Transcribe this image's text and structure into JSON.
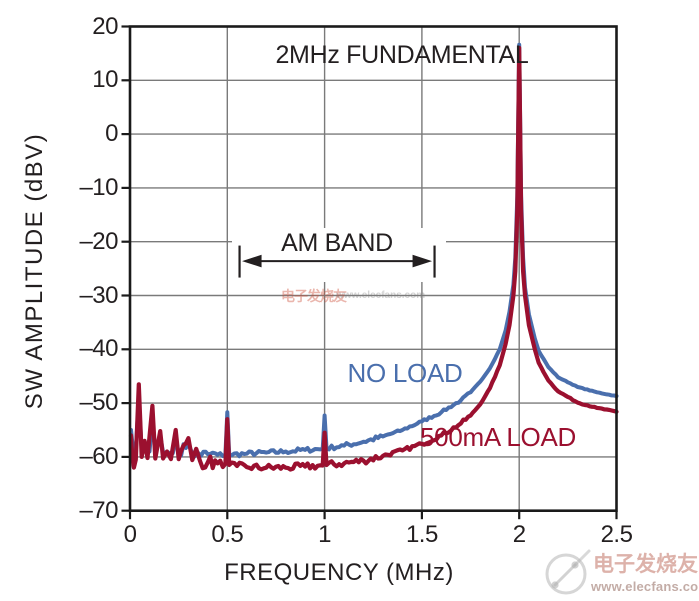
{
  "colors": {
    "no_load": "#4a6fad",
    "load_500ma": "#9b102f",
    "grid": "#7a7a7a",
    "frame": "#1a1a1a",
    "text": "#231f20",
    "watermark_red": "rgba(200,130,118,0.62)"
  },
  "axes": {
    "y": {
      "title": "SW AMPLITUDE (dBV)",
      "tick_labels": [
        "20",
        "10",
        "0",
        "–10",
        "–20",
        "–30",
        "–40",
        "–50",
        "–60",
        "–70"
      ],
      "tick_values": [
        20,
        10,
        0,
        -10,
        -20,
        -30,
        -40,
        -50,
        -60,
        -70
      ]
    },
    "x": {
      "title": "FREQUENCY (MHz)",
      "tick_labels": [
        "0",
        "0.5",
        "1",
        "1.5",
        "2",
        "2.5"
      ],
      "tick_values": [
        0,
        0.5,
        1,
        1.5,
        2,
        2.5
      ]
    }
  },
  "annotations": {
    "peak_label": "2MHz FUNDAMENTAL",
    "am_band": {
      "label": "AM BAND",
      "start_mhz": 0.563,
      "end_mhz": 1.565,
      "level_dbv": -23.6
    }
  },
  "watermark": {
    "cn": "电子发烧友",
    "url": "www.elecfans.com"
  },
  "chart_data": {
    "type": "line",
    "title": "2MHz FUNDAMENTAL",
    "xlabel": "FREQUENCY (MHz)",
    "ylabel": "SW AMPLITUDE (dBV)",
    "xlim": [
      0,
      2.5
    ],
    "ylim": [
      -70,
      20
    ],
    "grid": true,
    "series": [
      {
        "name": "NO LOAD",
        "color": "#4a6fad",
        "noise_db": 0.8,
        "points": [
          [
            0.005,
            -55
          ],
          [
            0.015,
            -58.5
          ],
          [
            0.03,
            -58.8
          ],
          [
            0.045,
            -49
          ],
          [
            0.06,
            -58.8
          ],
          [
            0.075,
            -59
          ],
          [
            0.1,
            -59
          ],
          [
            0.115,
            -53
          ],
          [
            0.13,
            -59
          ],
          [
            0.155,
            -56
          ],
          [
            0.17,
            -59.2
          ],
          [
            0.19,
            -59.2
          ],
          [
            0.22,
            -59.3
          ],
          [
            0.235,
            -56.5
          ],
          [
            0.25,
            -59.3
          ],
          [
            0.3,
            -57.5
          ],
          [
            0.32,
            -59.4
          ],
          [
            0.4,
            -59.5
          ],
          [
            0.45,
            -59.6
          ],
          [
            0.49,
            -59.6
          ],
          [
            0.5,
            -51.7
          ],
          [
            0.51,
            -59.6
          ],
          [
            0.6,
            -59.4
          ],
          [
            0.7,
            -59.2
          ],
          [
            0.8,
            -59
          ],
          [
            0.9,
            -58.7
          ],
          [
            0.99,
            -58.5
          ],
          [
            1.0,
            -52.3
          ],
          [
            1.01,
            -58.4
          ],
          [
            1.1,
            -57.9
          ],
          [
            1.2,
            -57.2
          ],
          [
            1.3,
            -56.2
          ],
          [
            1.4,
            -55
          ],
          [
            1.5,
            -53.4
          ],
          [
            1.6,
            -51.7
          ],
          [
            1.7,
            -49.5
          ],
          [
            1.75,
            -48
          ],
          [
            1.8,
            -46
          ],
          [
            1.85,
            -43.5
          ],
          [
            1.9,
            -40
          ],
          [
            1.93,
            -36.5
          ],
          [
            1.95,
            -33
          ],
          [
            1.97,
            -28
          ],
          [
            1.98,
            -23
          ],
          [
            1.99,
            -11.5
          ],
          [
            2.0,
            16.6
          ],
          [
            2.01,
            -11.5
          ],
          [
            2.02,
            -23
          ],
          [
            2.03,
            -28.5
          ],
          [
            2.05,
            -33.5
          ],
          [
            2.08,
            -38
          ],
          [
            2.1,
            -40.3
          ],
          [
            2.15,
            -43.3
          ],
          [
            2.2,
            -45.2
          ],
          [
            2.3,
            -47
          ],
          [
            2.4,
            -48
          ],
          [
            2.5,
            -48.7
          ]
        ]
      },
      {
        "name": "500mA LOAD",
        "color": "#9b102f",
        "noise_db": 1.2,
        "points": [
          [
            0.005,
            -56
          ],
          [
            0.012,
            -60
          ],
          [
            0.02,
            -62
          ],
          [
            0.03,
            -60.5
          ],
          [
            0.045,
            -46.5
          ],
          [
            0.06,
            -60
          ],
          [
            0.075,
            -57
          ],
          [
            0.09,
            -60.2
          ],
          [
            0.115,
            -50.5
          ],
          [
            0.13,
            -60.3
          ],
          [
            0.155,
            -55.2
          ],
          [
            0.17,
            -60.3
          ],
          [
            0.19,
            -59
          ],
          [
            0.21,
            -60.4
          ],
          [
            0.235,
            -55
          ],
          [
            0.25,
            -60.4
          ],
          [
            0.3,
            -56.5
          ],
          [
            0.32,
            -60.6
          ],
          [
            0.34,
            -58.5
          ],
          [
            0.36,
            -60.8
          ],
          [
            0.4,
            -61
          ],
          [
            0.45,
            -61.2
          ],
          [
            0.49,
            -61.3
          ],
          [
            0.5,
            -53
          ],
          [
            0.51,
            -61.5
          ],
          [
            0.55,
            -61.7
          ],
          [
            0.6,
            -61.9
          ],
          [
            0.7,
            -62
          ],
          [
            0.8,
            -62
          ],
          [
            0.9,
            -61.8
          ],
          [
            0.99,
            -61.6
          ],
          [
            1.0,
            -55.5
          ],
          [
            1.01,
            -61.5
          ],
          [
            1.1,
            -61.2
          ],
          [
            1.2,
            -60.7
          ],
          [
            1.3,
            -59.8
          ],
          [
            1.4,
            -58.8
          ],
          [
            1.5,
            -57.6
          ],
          [
            1.6,
            -56
          ],
          [
            1.7,
            -53.8
          ],
          [
            1.75,
            -52.3
          ],
          [
            1.8,
            -50.2
          ],
          [
            1.85,
            -47.2
          ],
          [
            1.9,
            -43
          ],
          [
            1.93,
            -39
          ],
          [
            1.95,
            -35.5
          ],
          [
            1.97,
            -30
          ],
          [
            1.98,
            -25.5
          ],
          [
            1.99,
            -14
          ],
          [
            2.0,
            16
          ],
          [
            2.01,
            -14
          ],
          [
            2.02,
            -25.5
          ],
          [
            2.03,
            -30
          ],
          [
            2.05,
            -35.5
          ],
          [
            2.08,
            -40
          ],
          [
            2.1,
            -42.5
          ],
          [
            2.15,
            -45.8
          ],
          [
            2.2,
            -47.8
          ],
          [
            2.3,
            -49.9
          ],
          [
            2.4,
            -50.9
          ],
          [
            2.5,
            -51.6
          ]
        ]
      }
    ]
  }
}
